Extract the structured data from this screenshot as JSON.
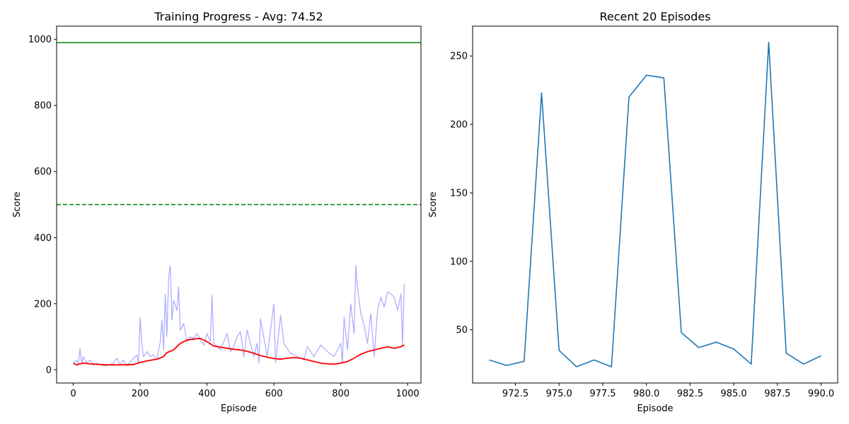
{
  "chart_data": [
    {
      "type": "line",
      "title": "Training Progress - Avg: 74.52",
      "xlabel": "Episode",
      "ylabel": "Score",
      "xlim": [
        -50,
        1040
      ],
      "ylim": [
        -40,
        1040
      ],
      "xticks": [
        0,
        200,
        400,
        600,
        800,
        1000
      ],
      "yticks": [
        0,
        200,
        400,
        600,
        800,
        1000
      ],
      "colors": {
        "raw": "#aaaaff",
        "moving_avg": "#ff0000",
        "threshold": "#008000"
      },
      "hlines": [
        {
          "y": 990,
          "style": "solid",
          "color": "#008000"
        },
        {
          "y": 500,
          "style": "dashed",
          "color": "#008000"
        }
      ],
      "series": [
        {
          "role": "raw",
          "x": [
            0,
            10,
            15,
            20,
            25,
            30,
            40,
            50,
            60,
            70,
            80,
            100,
            120,
            130,
            140,
            150,
            160,
            180,
            190,
            195,
            200,
            205,
            210,
            220,
            230,
            240,
            250,
            260,
            265,
            270,
            275,
            280,
            285,
            290,
            295,
            300,
            310,
            315,
            320,
            330,
            340,
            350,
            360,
            370,
            380,
            390,
            400,
            410,
            415,
            420,
            440,
            460,
            470,
            480,
            490,
            500,
            510,
            520,
            530,
            540,
            550,
            555,
            560,
            580,
            600,
            605,
            620,
            630,
            650,
            670,
            690,
            700,
            720,
            740,
            760,
            780,
            800,
            805,
            810,
            820,
            830,
            840,
            845,
            850,
            860,
            870,
            880,
            890,
            900,
            910,
            920,
            930,
            940,
            950,
            960,
            970,
            980,
            985,
            990
          ],
          "y": [
            20,
            30,
            15,
            65,
            20,
            40,
            20,
            30,
            15,
            20,
            15,
            12,
            20,
            35,
            15,
            30,
            12,
            35,
            45,
            20,
            158,
            80,
            40,
            55,
            40,
            45,
            30,
            85,
            150,
            60,
            230,
            100,
            280,
            315,
            150,
            210,
            180,
            250,
            120,
            140,
            85,
            100,
            95,
            110,
            90,
            75,
            110,
            85,
            225,
            80,
            60,
            110,
            55,
            70,
            100,
            115,
            40,
            120,
            80,
            40,
            80,
            20,
            155,
            40,
            200,
            20,
            165,
            80,
            50,
            40,
            30,
            70,
            40,
            75,
            55,
            40,
            80,
            20,
            160,
            60,
            200,
            110,
            315,
            250,
            170,
            135,
            80,
            170,
            40,
            180,
            220,
            190,
            235,
            230,
            220,
            180,
            230,
            75,
            260
          ]
        },
        {
          "role": "moving_avg",
          "x": [
            0,
            10,
            30,
            50,
            80,
            100,
            150,
            180,
            200,
            220,
            250,
            270,
            280,
            300,
            320,
            340,
            360,
            380,
            390,
            400,
            420,
            450,
            480,
            500,
            520,
            540,
            560,
            580,
            600,
            620,
            640,
            660,
            680,
            700,
            720,
            740,
            760,
            780,
            800,
            820,
            840,
            860,
            880,
            900,
            920,
            940,
            960,
            980,
            990
          ],
          "y": [
            20,
            15,
            20,
            18,
            16,
            15,
            15,
            16,
            22,
            27,
            32,
            40,
            52,
            60,
            80,
            90,
            93,
            95,
            90,
            85,
            72,
            67,
            62,
            60,
            56,
            50,
            43,
            38,
            34,
            32,
            35,
            37,
            35,
            30,
            25,
            20,
            18,
            17,
            20,
            25,
            35,
            47,
            55,
            60,
            65,
            70,
            65,
            70,
            75
          ]
        }
      ]
    },
    {
      "type": "line",
      "title": "Recent 20 Episodes",
      "xlabel": "Episode",
      "ylabel": "Score",
      "xlim": [
        970.05,
        990.95
      ],
      "ylim": [
        11.15,
        271.8
      ],
      "xticks": [
        972.5,
        975.0,
        977.5,
        980.0,
        982.5,
        985.0,
        987.5,
        990.0
      ],
      "yticks": [
        50,
        100,
        150,
        200,
        250
      ],
      "colors": {
        "line": "#1f77b4"
      },
      "series": [
        {
          "role": "line",
          "x": [
            971,
            972,
            973,
            974,
            975,
            976,
            977,
            978,
            979,
            980,
            981,
            982,
            983,
            984,
            985,
            986,
            987,
            988,
            989,
            990
          ],
          "y": [
            28,
            24,
            27,
            223,
            35,
            23,
            28,
            23,
            220,
            236,
            234,
            48,
            37,
            41,
            36,
            25,
            260,
            33,
            25,
            31
          ]
        }
      ]
    }
  ]
}
